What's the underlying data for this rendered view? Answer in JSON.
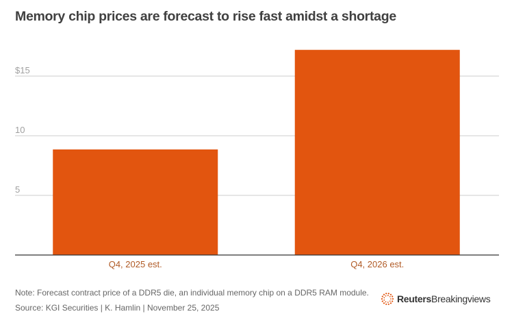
{
  "header": {
    "title": "Memory chip prices are forecast to rise fast amidst a shortage"
  },
  "chart_data": {
    "type": "bar",
    "title": "Memory chip prices are forecast to rise fast amidst a shortage",
    "categories": [
      "Q4, 2025 est.",
      "Q4, 2026 est."
    ],
    "values": [
      8.85,
      17.2
    ],
    "xlabel": "",
    "ylabel": "",
    "ylim": [
      0,
      18
    ],
    "yticks": [
      5,
      10,
      15
    ],
    "ytick_labels": [
      "5",
      "10",
      "$15"
    ],
    "grid": true,
    "legend": "none",
    "bar_color": "#e2550f",
    "category_label_color": "#b05a25"
  },
  "footer": {
    "note": "Note: Forecast contract price of a DDR5 die, an individual memory chip on a DDR5 RAM module.",
    "source": "Source: KGI Securities | K. Hamlin | November 25, 2025",
    "logo_brand": "Reuters",
    "logo_product": "Breakingviews",
    "logo_icon": "reuters-dot-circle-icon",
    "logo_color": "#e2550f"
  }
}
